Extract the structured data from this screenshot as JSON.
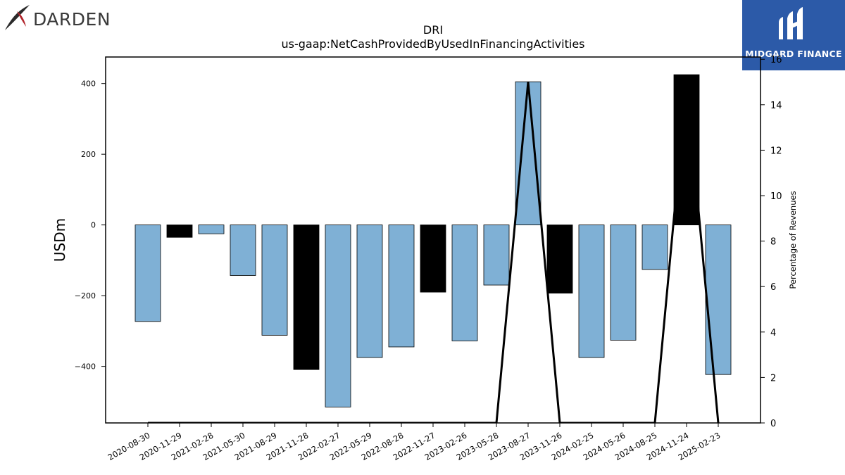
{
  "logos": {
    "left_brand": "DARDEN",
    "right_brand": "MIDGARD FINANCE"
  },
  "chart_data": {
    "type": "bar",
    "title": "DRI",
    "subtitle": "us-gaap:NetCashProvidedByUsedInFinancingActivities",
    "ylabel": "USDm",
    "y2label": "Percentage of Revenues",
    "categories": [
      "2020-08-30",
      "2020-11-29",
      "2021-02-28",
      "2021-05-30",
      "2021-08-29",
      "2021-11-28",
      "2022-02-27",
      "2022-05-29",
      "2022-08-28",
      "2022-11-27",
      "2023-02-26",
      "2023-05-28",
      "2023-08-27",
      "2023-11-26",
      "2024-02-25",
      "2024-05-26",
      "2024-08-25",
      "2024-11-24",
      "2025-02-23"
    ],
    "values": [
      -273,
      -35,
      -25,
      -143,
      -312,
      -409,
      -515,
      -375,
      -345,
      -190,
      -328,
      -170,
      405,
      -193,
      -375,
      -326,
      -126,
      425,
      -423
    ],
    "bar_colors": [
      "#7fb0d5",
      "#000000",
      "#7fb0d5",
      "#7fb0d5",
      "#7fb0d5",
      "#000000",
      "#7fb0d5",
      "#7fb0d5",
      "#7fb0d5",
      "#000000",
      "#7fb0d5",
      "#7fb0d5",
      "#7fb0d5",
      "#000000",
      "#7fb0d5",
      "#7fb0d5",
      "#7fb0d5",
      "#000000",
      "#7fb0d5"
    ],
    "line_series": {
      "values": [
        0,
        0,
        0,
        0,
        0,
        0,
        0,
        0,
        0,
        0,
        0,
        0,
        15,
        0,
        0,
        0,
        0,
        15,
        0
      ],
      "color": "#000000"
    },
    "ylim": [
      -560,
      475
    ],
    "yticks": [
      -400,
      -200,
      0,
      200,
      400
    ],
    "y2lim": [
      0,
      16.1
    ],
    "y2ticks": [
      0,
      2,
      4,
      6,
      8,
      10,
      12,
      14,
      16
    ],
    "grid": false
  }
}
